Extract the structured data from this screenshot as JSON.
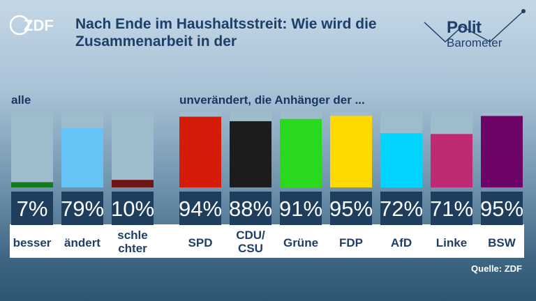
{
  "header": {
    "logo_text": "ZDF",
    "title": "Nach Ende im Haushaltsstreit: Wie wird die Zusammenarbeit in der",
    "brand_line1": "Polit",
    "brand_line2": "Barometer"
  },
  "sections": {
    "all_label": "alle",
    "parties_label": "unverändert, die Anhänger der ..."
  },
  "source": "Quelle: ZDF",
  "colors": {
    "track": "#9fbccd",
    "value_box": "#1f3e5e",
    "value_text": "#ffffff",
    "label_text": "#1e3f6a"
  },
  "chart_data": {
    "type": "bar",
    "ylim": [
      0,
      100
    ],
    "categories": [
      {
        "lines": [
          "besser"
        ],
        "value": 7,
        "display": "7%",
        "color": "#137a1e"
      },
      {
        "lines": [
          "ändert"
        ],
        "value": 79,
        "display": "79%",
        "color": "#67c2f5"
      },
      {
        "lines": [
          "schle",
          "chter"
        ],
        "value": 10,
        "display": "10%",
        "color": "#6e1515"
      },
      {
        "lines": [
          "SPD"
        ],
        "value": 94,
        "display": "94%",
        "color": "#d41c08"
      },
      {
        "lines": [
          "CDU/",
          "CSU"
        ],
        "value": 88,
        "display": "88%",
        "color": "#1c1c1c"
      },
      {
        "lines": [
          "Grüne"
        ],
        "value": 91,
        "display": "91%",
        "color": "#2ad91e"
      },
      {
        "lines": [
          "FDP"
        ],
        "value": 95,
        "display": "95%",
        "color": "#ffda00"
      },
      {
        "lines": [
          "AfD"
        ],
        "value": 72,
        "display": "72%",
        "color": "#00d4ff"
      },
      {
        "lines": [
          "Linke"
        ],
        "value": 71,
        "display": "71%",
        "color": "#bf2a73"
      },
      {
        "lines": [
          "BSW"
        ],
        "value": 95,
        "display": "95%",
        "color": "#6c0567"
      }
    ]
  }
}
